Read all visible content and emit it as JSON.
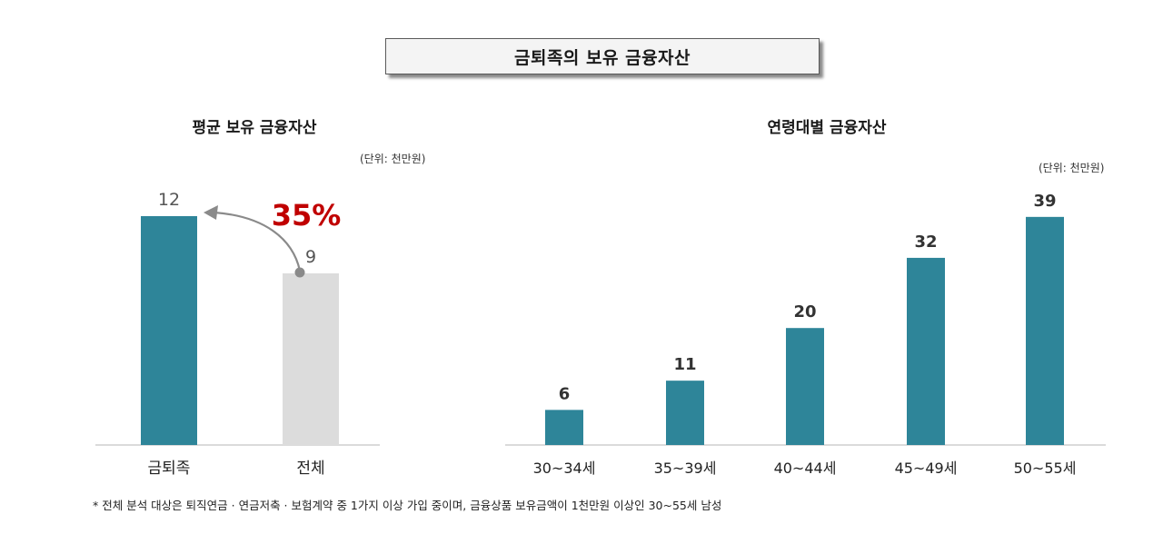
{
  "page": {
    "title": "금퇴족의 보유 금융자산",
    "footnote": "* 전체 분석 대상은 퇴직연금 · 연금저축 · 보험계약 중 1가지 이상 가입 중이며, 금융상품 보유금액이 1천만원 이상인 30~55세 남성"
  },
  "colors": {
    "teal": "#2e8599",
    "gray": "#dcdcdc",
    "highlight": "#c00000",
    "arrow": "#8a8a8a"
  },
  "chart_data": [
    {
      "type": "bar",
      "title": "평균 보유 금융자산",
      "unit": "(단위: 천만원)",
      "categories": [
        "금퇴족",
        "전체"
      ],
      "values": [
        12,
        9
      ],
      "bar_colors": [
        "#2e8599",
        "#dcdcdc"
      ],
      "annotation": "35%",
      "ylim": [
        0,
        16
      ]
    },
    {
      "type": "bar",
      "title": "연령대별 금융자산",
      "unit": "(단위: 천만원)",
      "categories": [
        "30~34세",
        "35~39세",
        "40~44세",
        "45~49세",
        "50~55세"
      ],
      "values": [
        6,
        11,
        20,
        32,
        39
      ],
      "bar_colors": [
        "#2e8599",
        "#2e8599",
        "#2e8599",
        "#2e8599",
        "#2e8599"
      ],
      "ylim": [
        0,
        50
      ]
    }
  ]
}
